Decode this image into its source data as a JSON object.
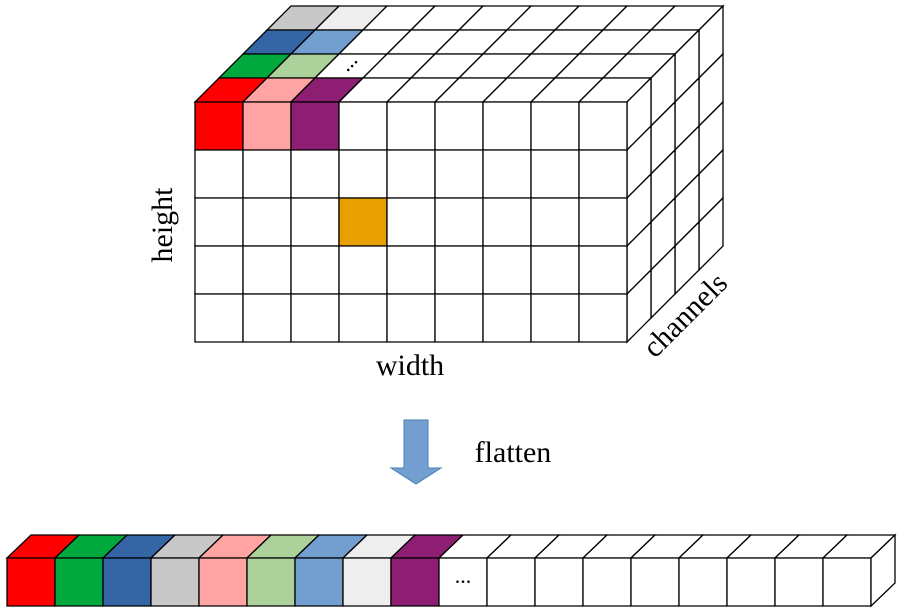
{
  "labels": {
    "height": "height",
    "width": "width",
    "channels": "channels",
    "flatten": "flatten",
    "tensor_ellipsis": "...",
    "vector_ellipsis": "..."
  },
  "colors": {
    "red": "#ff0000",
    "green": "#00a83e",
    "blue": "#3465a4",
    "light_gray": "#c8c8c8",
    "pink": "#ffa3a3",
    "light_green": "#acd19a",
    "light_blue": "#729fcf",
    "very_light_gray": "#eeeeee",
    "purple": "#8e1e72",
    "orange": "#e8a000",
    "arrow": "#729fcf",
    "line": "#000000",
    "empty": "#ffffff"
  },
  "tensor": {
    "columns": 9,
    "rows": 5,
    "channels": 4,
    "front_top_row_colors": [
      "red",
      "pink",
      "purple"
    ],
    "channel_row_colors": [
      [
        "red",
        "pink",
        "purple"
      ],
      [
        "green",
        "light_green"
      ],
      [
        "blue",
        "light_blue"
      ],
      [
        "light_gray",
        "very_light_gray"
      ]
    ],
    "highlighted_cell": {
      "row": 2,
      "column": 3,
      "color": "orange"
    }
  },
  "vector": {
    "cells": 18,
    "colored_cells": [
      "red",
      "green",
      "blue",
      "light_gray",
      "pink",
      "light_green",
      "light_blue",
      "very_light_gray",
      "purple"
    ]
  },
  "arrow": {
    "direction": "down",
    "icon": "down-arrow-icon"
  }
}
